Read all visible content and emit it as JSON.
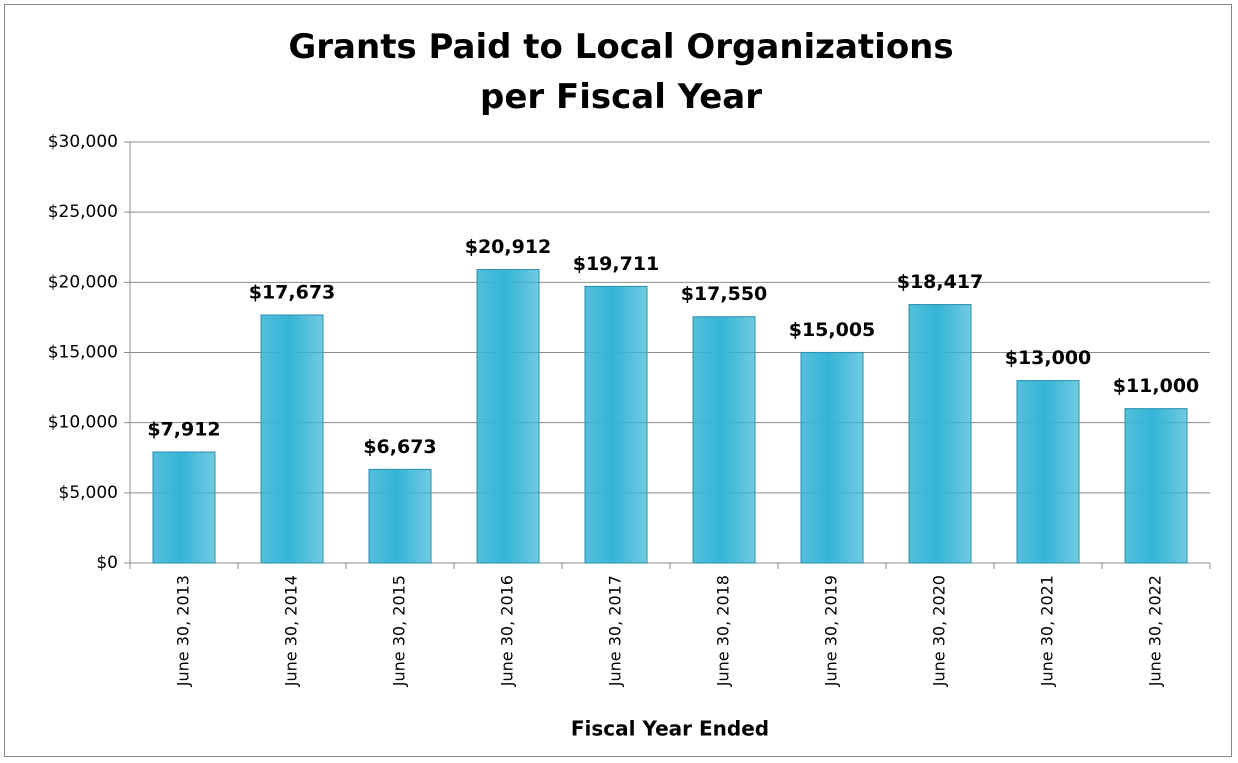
{
  "chart_data": {
    "type": "bar",
    "title": "Grants Paid to Local Organizations per Fiscal Year",
    "x_label": "Fiscal Year Ended",
    "categories": [
      "June 30, 2013",
      "June 30, 2014",
      "June 30, 2015",
      "June 30, 2016",
      "June 30, 2017",
      "June 30, 2018",
      "June 30, 2019",
      "June 30, 2020",
      "June 30, 2021",
      "June 30, 2022"
    ],
    "values": [
      7912,
      17673,
      6673,
      20912,
      19711,
      17550,
      15005,
      18417,
      13000,
      11000
    ],
    "value_labels": [
      "$7,912",
      "$17,673",
      "$6,673",
      "$20,912",
      "$19,711",
      "$17,550",
      "$15,005",
      "$18,417",
      "$13,000",
      "$11,000"
    ],
    "color": "#35b4d6",
    "ylim": [
      0,
      30000
    ],
    "yticks": [
      {
        "value": 0,
        "label": "$0"
      },
      {
        "value": 5000,
        "label": "$5,000"
      },
      {
        "value": 10000,
        "label": "$10,000"
      },
      {
        "value": 15000,
        "label": "$15,000"
      },
      {
        "value": 20000,
        "label": "$20,000"
      },
      {
        "value": 25000,
        "label": "$25,000"
      },
      {
        "value": 30000,
        "label": "$30,000"
      }
    ],
    "grid": true
  }
}
